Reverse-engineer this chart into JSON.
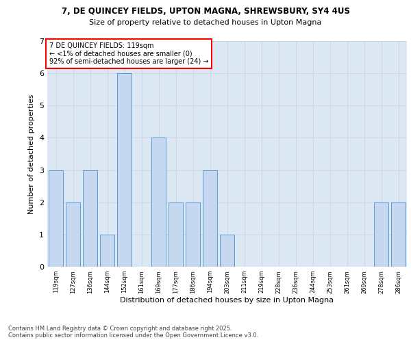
{
  "title_line1": "7, DE QUINCEY FIELDS, UPTON MAGNA, SHREWSBURY, SY4 4US",
  "title_line2": "Size of property relative to detached houses in Upton Magna",
  "categories": [
    "119sqm",
    "127sqm",
    "136sqm",
    "144sqm",
    "152sqm",
    "161sqm",
    "169sqm",
    "177sqm",
    "186sqm",
    "194sqm",
    "203sqm",
    "211sqm",
    "219sqm",
    "228sqm",
    "236sqm",
    "244sqm",
    "253sqm",
    "261sqm",
    "269sqm",
    "278sqm",
    "286sqm"
  ],
  "values": [
    3,
    2,
    3,
    1,
    6,
    0,
    4,
    2,
    2,
    3,
    1,
    0,
    0,
    0,
    0,
    0,
    0,
    0,
    0,
    2,
    2
  ],
  "bar_color": "#c5d8f0",
  "bar_edge_color": "#5b9bd5",
  "xlabel": "Distribution of detached houses by size in Upton Magna",
  "ylabel": "Number of detached properties",
  "ylim": [
    0,
    7
  ],
  "yticks": [
    0,
    1,
    2,
    3,
    4,
    5,
    6,
    7
  ],
  "annotation_box_text": "7 DE QUINCEY FIELDS: 119sqm\n← <1% of detached houses are smaller (0)\n92% of semi-detached houses are larger (24) →",
  "annotation_box_color": "white",
  "annotation_box_edge_color": "red",
  "footer_text": "Contains HM Land Registry data © Crown copyright and database right 2025.\nContains public sector information licensed under the Open Government Licence v3.0.",
  "grid_color": "#d0d8e8",
  "background_color": "#dde8f5",
  "highlight_bar_index": 0
}
